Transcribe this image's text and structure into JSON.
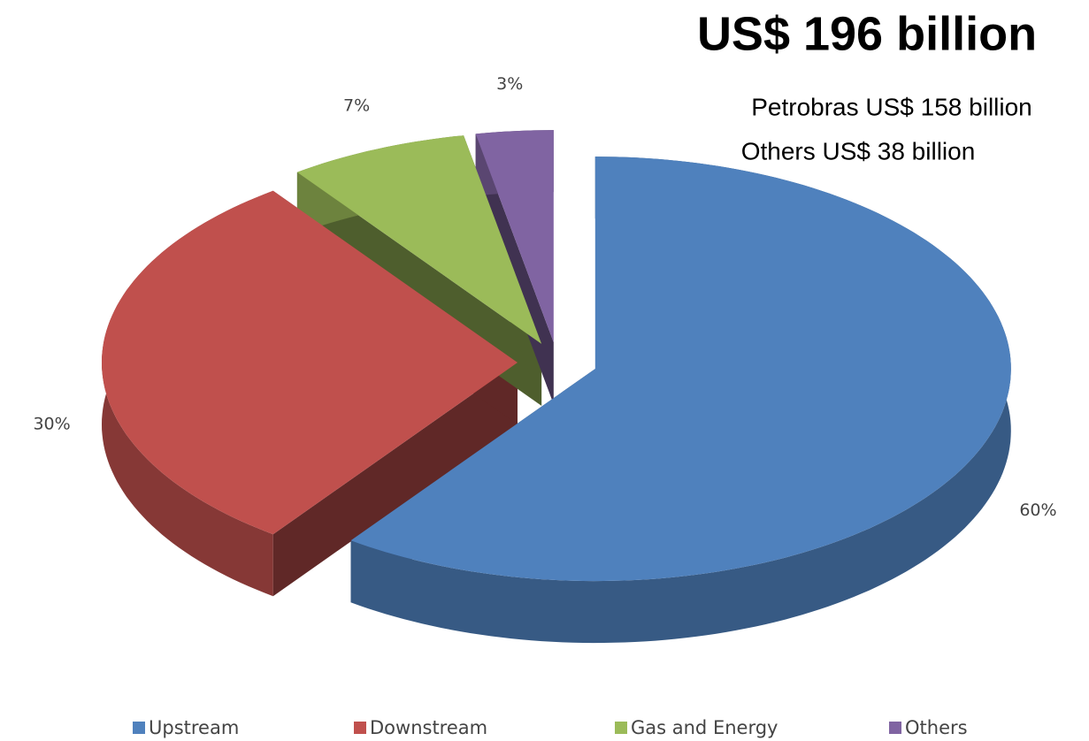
{
  "chart_data": {
    "type": "pie",
    "title": "US$ 196 billion",
    "annotations": [
      "Petrobras US$ 158 billion",
      "Others US$ 38 billion"
    ],
    "categories": [
      "Upstream",
      "Downstream",
      "Gas and Energy",
      "Others"
    ],
    "values": [
      60,
      30,
      7,
      3
    ],
    "value_labels": [
      "60%",
      "30%",
      "7%",
      "3%"
    ],
    "colors": [
      "#4f81bd",
      "#c0504d",
      "#9bbb59",
      "#8064a2"
    ],
    "legend": "bottom"
  }
}
